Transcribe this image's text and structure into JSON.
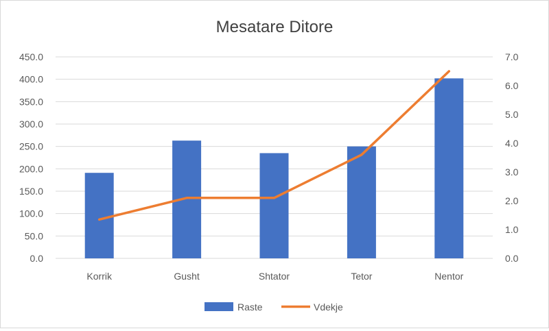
{
  "chart_data": {
    "type": "bar",
    "title": "Mesatare Ditore",
    "categories": [
      "Korrik",
      "Gusht",
      "Shtator",
      "Tetor",
      "Nentor"
    ],
    "series": [
      {
        "name": "Raste",
        "type": "bar",
        "axis": "left",
        "color": "#4472c4",
        "values": [
          191,
          263,
          235,
          250,
          402
        ]
      },
      {
        "name": "Vdekje",
        "type": "line",
        "axis": "right",
        "color": "#ed7d31",
        "values": [
          1.35,
          2.1,
          2.1,
          3.6,
          6.5
        ]
      }
    ],
    "y_left": {
      "min": 0,
      "max": 450,
      "step": 50,
      "tick_labels": [
        "0.0",
        "50.0",
        "100.0",
        "150.0",
        "200.0",
        "250.0",
        "300.0",
        "350.0",
        "400.0",
        "450.0"
      ]
    },
    "y_right": {
      "min": 0,
      "max": 7,
      "step": 1,
      "tick_labels": [
        "0.0",
        "1.0",
        "2.0",
        "3.0",
        "4.0",
        "5.0",
        "6.0",
        "7.0"
      ]
    },
    "grid": true,
    "legend": "bottom"
  }
}
